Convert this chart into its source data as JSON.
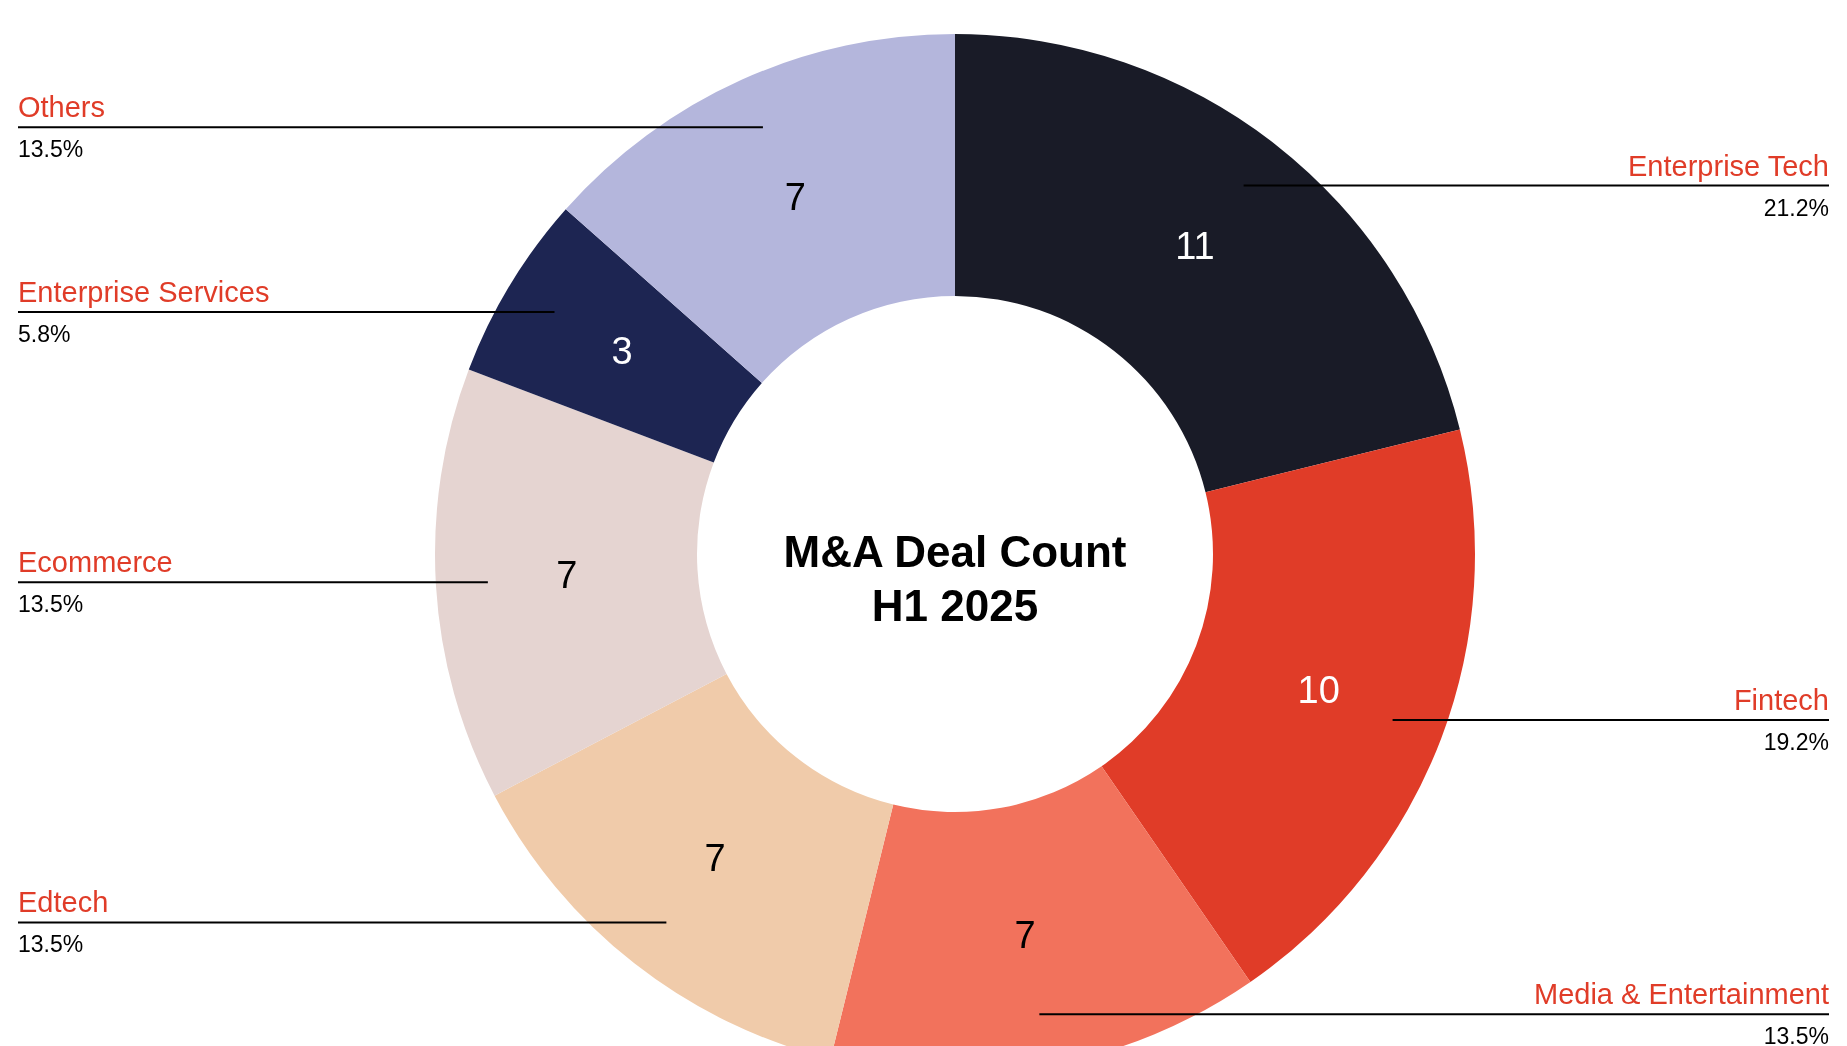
{
  "chart_data": {
    "type": "donut",
    "title": "M&A Deal Count\nH1 2025",
    "categories": [
      "Enterprise Tech",
      "Fintech",
      "Media & Entertainment",
      "Edtech",
      "Ecommerce",
      "Enterprise Services",
      "Others"
    ],
    "values": [
      11,
      10,
      7,
      7,
      7,
      3,
      7
    ],
    "colors": [
      "#191b27",
      "#e03c28",
      "#f2725c",
      "#f0cbaa",
      "#e5d4d1",
      "#1d2552",
      "#b4b6dc"
    ],
    "value_labels": [
      "11",
      "10",
      "7",
      "7",
      "7",
      "3",
      "7"
    ],
    "annotations": [
      "21.2%",
      "19.2%",
      "13.5%",
      "13.5%",
      "13.5%",
      "5.8%",
      "13.5%"
    ]
  }
}
